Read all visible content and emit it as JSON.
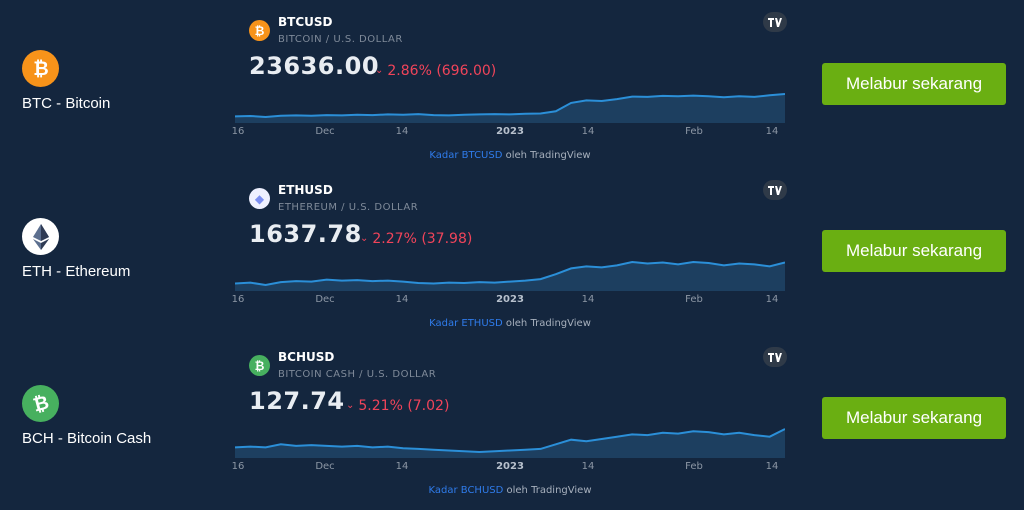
{
  "colors": {
    "background": "#14263e",
    "accent_button": "#6aaf12",
    "negative": "#f0445a",
    "chart_line": "#2b8fd8",
    "link": "#2f7bea"
  },
  "rows": [
    {
      "coin_name": "BTC - Bitcoin",
      "coin_icon": "bitcoin-icon",
      "coin_color": "#f7931a",
      "symbol": "BTCUSD",
      "subtitle": "BITCOIN / U.S. DOLLAR",
      "price": "23636.00",
      "change": "2.86% (696.00)",
      "button_label": "Melabur sekarang",
      "attribution_link": "Kadar BTCUSD",
      "attribution_rest": " oleh TradingView",
      "chart_data": {
        "type": "area",
        "x_ticks": [
          "16",
          "Dec",
          "14",
          "2023",
          "14",
          "Feb",
          "14"
        ],
        "values": [
          16.6,
          16.7,
          16.4,
          16.8,
          16.9,
          16.8,
          17.0,
          16.9,
          17.1,
          17.0,
          17.2,
          17.1,
          17.3,
          17.0,
          16.9,
          17.1,
          17.2,
          17.3,
          17.2,
          17.4,
          17.5,
          18.2,
          20.8,
          21.6,
          21.4,
          22.0,
          22.8,
          22.7,
          23.0,
          22.9,
          23.1,
          22.9,
          22.6,
          22.9,
          22.7,
          23.2,
          23.6
        ]
      }
    },
    {
      "coin_name": "ETH - Ethereum",
      "coin_icon": "ethereum-icon",
      "coin_color": "#ffffff",
      "symbol": "ETHUSD",
      "subtitle": "ETHEREUM / U.S. DOLLAR",
      "price": "1637.78",
      "change": "2.27% (37.98)",
      "button_label": "Melabur sekarang",
      "attribution_link": "Kadar ETHUSD",
      "attribution_rest": " oleh TradingView",
      "chart_data": {
        "type": "area",
        "x_ticks": [
          "16",
          "Dec",
          "14",
          "2023",
          "14",
          "Feb",
          "14"
        ],
        "values": [
          1210,
          1230,
          1180,
          1240,
          1260,
          1250,
          1290,
          1270,
          1280,
          1260,
          1270,
          1250,
          1220,
          1210,
          1230,
          1220,
          1240,
          1230,
          1250,
          1270,
          1300,
          1400,
          1520,
          1560,
          1540,
          1580,
          1650,
          1620,
          1640,
          1600,
          1650,
          1630,
          1580,
          1620,
          1600,
          1560,
          1640
        ]
      }
    },
    {
      "coin_name": "BCH - Bitcoin Cash",
      "coin_icon": "bitcoin-cash-icon",
      "coin_color": "#47b05f",
      "symbol": "BCHUSD",
      "subtitle": "BITCOIN CASH / U.S. DOLLAR",
      "price": "127.74",
      "change": "5.21% (7.02)",
      "button_label": "Melabur sekarang",
      "attribution_link": "Kadar BCHUSD",
      "attribution_rest": " oleh TradingView",
      "chart_data": {
        "type": "area",
        "x_ticks": [
          "16",
          "Dec",
          "14",
          "2023",
          "14",
          "Feb",
          "14"
        ],
        "values": [
          104,
          105,
          104,
          108,
          106,
          107,
          106,
          105,
          106,
          104,
          105,
          103,
          102,
          101,
          100,
          99,
          98,
          99,
          100,
          101,
          102,
          108,
          114,
          112,
          115,
          118,
          121,
          120,
          123,
          122,
          125,
          124,
          121,
          123,
          120,
          118,
          128
        ]
      }
    }
  ]
}
